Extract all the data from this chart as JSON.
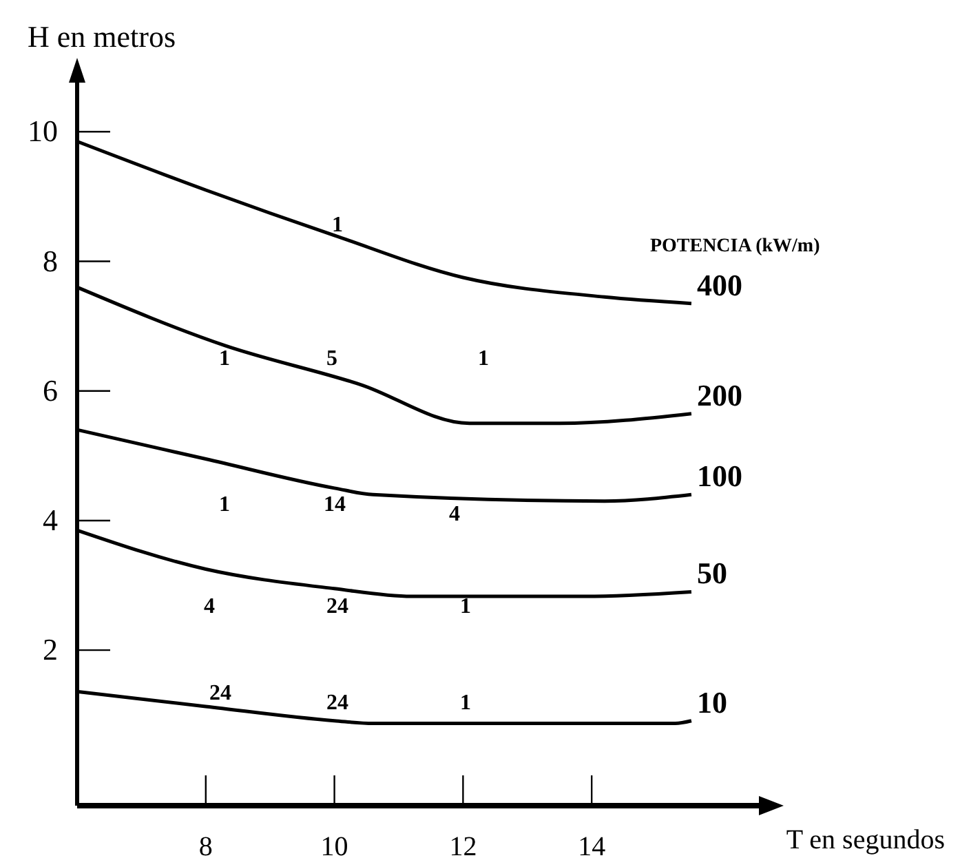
{
  "chart_data": {
    "type": "line",
    "xlabel": "T en segundos",
    "ylabel": "H en metros",
    "legend_title": "POTENCIA (kW/m)",
    "grid": false,
    "marker": "none",
    "line_style": "solid",
    "xlim": [
      6,
      16.6
    ],
    "ylim": [
      -0.4,
      10.8
    ],
    "xticks": [
      8,
      10,
      12,
      14
    ],
    "yticks": [
      2,
      4,
      6,
      8,
      10
    ],
    "series": [
      {
        "name": "400",
        "color": "#000000",
        "x": [
          6,
          8,
          10,
          12,
          14.2,
          15.55
        ],
        "values": [
          9.85,
          9.1,
          8.4,
          7.75,
          7.45,
          7.35
        ]
      },
      {
        "name": "200",
        "color": "#000000",
        "x": [
          6,
          8.3,
          10.4,
          12.1,
          13.5,
          15.55
        ],
        "values": [
          7.6,
          6.7,
          6.1,
          5.5,
          5.5,
          5.65
        ]
      },
      {
        "name": "100",
        "color": "#000000",
        "x": [
          6,
          8,
          10,
          10.6,
          14.2,
          15.55
        ],
        "values": [
          5.4,
          4.95,
          4.5,
          4.4,
          4.3,
          4.4
        ]
      },
      {
        "name": "50",
        "color": "#000000",
        "x": [
          6,
          8,
          10,
          11.2,
          13.9,
          15.55
        ],
        "values": [
          3.85,
          3.25,
          2.95,
          2.83,
          2.83,
          2.9
        ]
      },
      {
        "name": "10",
        "color": "#000000",
        "x": [
          6,
          8,
          10,
          10.6,
          15.3,
          15.55
        ],
        "values": [
          1.36,
          1.13,
          0.91,
          0.87,
          0.87,
          0.91
        ]
      }
    ],
    "annotations": [
      "1",
      "1",
      "5",
      "1",
      "1",
      "14",
      "4",
      "4",
      "24",
      "1",
      "24",
      "24",
      "1"
    ]
  }
}
